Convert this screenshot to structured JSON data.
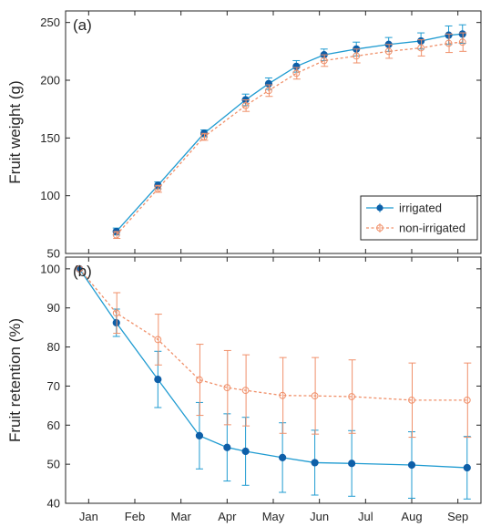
{
  "colors": {
    "irrigated": "#1f9bd1",
    "irrigated_marker": "#0e5fa8",
    "non_irrigated": "#f0906a"
  },
  "chart_data": [
    {
      "panel": "(a)",
      "type": "line",
      "ylabel": "Fruit weight (g)",
      "xlabel": "",
      "ylim": [
        50,
        260
      ],
      "yticks": [
        50,
        100,
        150,
        200,
        250
      ],
      "legend": {
        "placement": "bottom-right",
        "entries": [
          "irrigated",
          "non-irrigated"
        ]
      },
      "series": [
        {
          "name": "irrigated",
          "style": "solid",
          "x": [
            1.1,
            2.0,
            3.0,
            3.9,
            4.4,
            5.0,
            5.6,
            6.3,
            7.0,
            7.7,
            8.3,
            8.6
          ],
          "values": [
            69,
            109,
            154,
            183,
            197,
            212,
            222,
            227,
            231,
            234,
            239,
            240
          ],
          "err": [
            3,
            3,
            3,
            5,
            5,
            5,
            5,
            6,
            6,
            7,
            8,
            8
          ]
        },
        {
          "name": "non-irrigated",
          "style": "dotted",
          "x": [
            1.1,
            2.0,
            3.0,
            3.9,
            4.4,
            5.0,
            5.6,
            6.3,
            7.0,
            7.7,
            8.3,
            8.6
          ],
          "values": [
            66,
            106,
            151,
            178,
            191,
            206,
            217,
            221,
            225,
            228,
            232,
            233
          ],
          "err": [
            3,
            3,
            3,
            5,
            5,
            5,
            5,
            6,
            6,
            7,
            8,
            8
          ]
        }
      ]
    },
    {
      "panel": "(b)",
      "type": "line",
      "ylabel": "Fruit retention (%)",
      "xlabel": "",
      "ylim": [
        40,
        103
      ],
      "yticks": [
        40,
        50,
        60,
        70,
        80,
        90,
        100
      ],
      "categories": [
        "Jan",
        "Feb",
        "Mar",
        "Apr",
        "May",
        "Jun",
        "Jul",
        "Aug",
        "Sep"
      ],
      "series": [
        {
          "name": "irrigated",
          "style": "solid",
          "x": [
            0.3,
            1.1,
            2.0,
            2.9,
            3.5,
            3.9,
            4.7,
            5.4,
            6.2,
            7.5,
            8.7
          ],
          "values": [
            100,
            86.2,
            71.7,
            57.3,
            54.3,
            53.3,
            51.7,
            50.4,
            50.2,
            49.8,
            49.1
          ],
          "err": [
            0,
            3.5,
            7.2,
            8.5,
            8.6,
            8.7,
            8.9,
            8.3,
            8.4,
            8.5,
            8.0
          ]
        },
        {
          "name": "non-irrigated",
          "style": "dotted",
          "x": [
            0.3,
            1.1,
            2.0,
            2.9,
            3.5,
            3.9,
            4.7,
            5.4,
            6.2,
            7.5,
            8.7
          ],
          "values": [
            100,
            88.7,
            81.9,
            71.6,
            69.6,
            68.9,
            67.6,
            67.5,
            67.3,
            66.4,
            66.4
          ],
          "err": [
            0,
            5.2,
            6.5,
            9.1,
            9.5,
            9.1,
            9.7,
            9.8,
            9.4,
            9.5,
            9.5
          ]
        }
      ]
    }
  ]
}
